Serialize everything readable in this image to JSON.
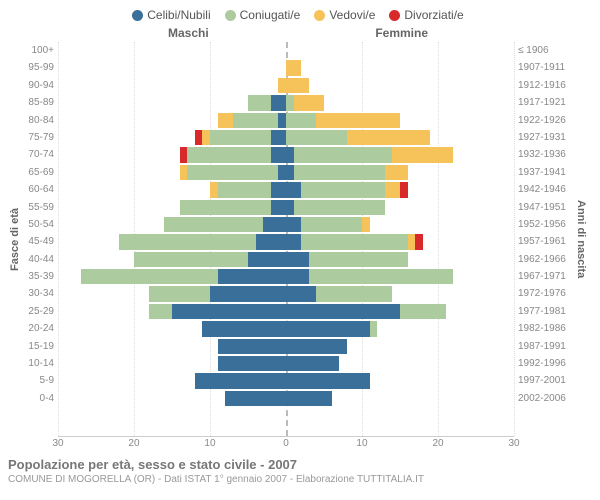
{
  "colors": {
    "celibi": "#3a6f9a",
    "coniugati": "#accb9e",
    "vedovi": "#f6c35a",
    "divorziati": "#d82a2a",
    "grid": "#dddddd",
    "center": "#bbbbbb",
    "text_muted": "#888888"
  },
  "legend": [
    {
      "label": "Celibi/Nubili",
      "color_key": "celibi"
    },
    {
      "label": "Coniugati/e",
      "color_key": "coniugati"
    },
    {
      "label": "Vedovi/e",
      "color_key": "vedovi"
    },
    {
      "label": "Divorziati/e",
      "color_key": "divorziati"
    }
  ],
  "gender_left": "Maschi",
  "gender_right": "Femmine",
  "yaxis_left_title": "Fasce di età",
  "yaxis_right_title": "Anni di nascita",
  "x_max": 30,
  "x_ticks": [
    30,
    20,
    10,
    0,
    10,
    20,
    30
  ],
  "rows": [
    {
      "age": "100+",
      "birth": "≤ 1906",
      "m": {
        "cel": 0,
        "con": 0,
        "ved": 0,
        "div": 0
      },
      "f": {
        "cel": 0,
        "con": 0,
        "ved": 0,
        "div": 0
      }
    },
    {
      "age": "95-99",
      "birth": "1907-1911",
      "m": {
        "cel": 0,
        "con": 0,
        "ved": 0,
        "div": 0
      },
      "f": {
        "cel": 0,
        "con": 0,
        "ved": 2,
        "div": 0
      }
    },
    {
      "age": "90-94",
      "birth": "1912-1916",
      "m": {
        "cel": 0,
        "con": 0,
        "ved": 1,
        "div": 0
      },
      "f": {
        "cel": 0,
        "con": 0,
        "ved": 3,
        "div": 0
      }
    },
    {
      "age": "85-89",
      "birth": "1917-1921",
      "m": {
        "cel": 2,
        "con": 3,
        "ved": 0,
        "div": 0
      },
      "f": {
        "cel": 0,
        "con": 1,
        "ved": 4,
        "div": 0
      }
    },
    {
      "age": "80-84",
      "birth": "1922-1926",
      "m": {
        "cel": 1,
        "con": 6,
        "ved": 2,
        "div": 0
      },
      "f": {
        "cel": 0,
        "con": 4,
        "ved": 11,
        "div": 0
      }
    },
    {
      "age": "75-79",
      "birth": "1927-1931",
      "m": {
        "cel": 2,
        "con": 8,
        "ved": 1,
        "div": 1
      },
      "f": {
        "cel": 0,
        "con": 8,
        "ved": 11,
        "div": 0
      }
    },
    {
      "age": "70-74",
      "birth": "1932-1936",
      "m": {
        "cel": 2,
        "con": 11,
        "ved": 0,
        "div": 1
      },
      "f": {
        "cel": 1,
        "con": 13,
        "ved": 8,
        "div": 0
      }
    },
    {
      "age": "65-69",
      "birth": "1937-1941",
      "m": {
        "cel": 1,
        "con": 12,
        "ved": 1,
        "div": 0
      },
      "f": {
        "cel": 1,
        "con": 12,
        "ved": 3,
        "div": 0
      }
    },
    {
      "age": "60-64",
      "birth": "1942-1946",
      "m": {
        "cel": 2,
        "con": 7,
        "ved": 1,
        "div": 0
      },
      "f": {
        "cel": 2,
        "con": 11,
        "ved": 2,
        "div": 1
      }
    },
    {
      "age": "55-59",
      "birth": "1947-1951",
      "m": {
        "cel": 2,
        "con": 12,
        "ved": 0,
        "div": 0
      },
      "f": {
        "cel": 1,
        "con": 12,
        "ved": 0,
        "div": 0
      }
    },
    {
      "age": "50-54",
      "birth": "1952-1956",
      "m": {
        "cel": 3,
        "con": 13,
        "ved": 0,
        "div": 0
      },
      "f": {
        "cel": 2,
        "con": 8,
        "ved": 1,
        "div": 0
      }
    },
    {
      "age": "45-49",
      "birth": "1957-1961",
      "m": {
        "cel": 4,
        "con": 18,
        "ved": 0,
        "div": 0
      },
      "f": {
        "cel": 2,
        "con": 14,
        "ved": 1,
        "div": 1
      }
    },
    {
      "age": "40-44",
      "birth": "1962-1966",
      "m": {
        "cel": 5,
        "con": 15,
        "ved": 0,
        "div": 0
      },
      "f": {
        "cel": 3,
        "con": 13,
        "ved": 0,
        "div": 0
      }
    },
    {
      "age": "35-39",
      "birth": "1967-1971",
      "m": {
        "cel": 9,
        "con": 18,
        "ved": 0,
        "div": 0
      },
      "f": {
        "cel": 3,
        "con": 19,
        "ved": 0,
        "div": 0
      }
    },
    {
      "age": "30-34",
      "birth": "1972-1976",
      "m": {
        "cel": 10,
        "con": 8,
        "ved": 0,
        "div": 0
      },
      "f": {
        "cel": 4,
        "con": 10,
        "ved": 0,
        "div": 0
      }
    },
    {
      "age": "25-29",
      "birth": "1977-1981",
      "m": {
        "cel": 15,
        "con": 3,
        "ved": 0,
        "div": 0
      },
      "f": {
        "cel": 15,
        "con": 6,
        "ved": 0,
        "div": 0
      }
    },
    {
      "age": "20-24",
      "birth": "1982-1986",
      "m": {
        "cel": 11,
        "con": 0,
        "ved": 0,
        "div": 0
      },
      "f": {
        "cel": 11,
        "con": 1,
        "ved": 0,
        "div": 0
      }
    },
    {
      "age": "15-19",
      "birth": "1987-1991",
      "m": {
        "cel": 9,
        "con": 0,
        "ved": 0,
        "div": 0
      },
      "f": {
        "cel": 8,
        "con": 0,
        "ved": 0,
        "div": 0
      }
    },
    {
      "age": "10-14",
      "birth": "1992-1996",
      "m": {
        "cel": 9,
        "con": 0,
        "ved": 0,
        "div": 0
      },
      "f": {
        "cel": 7,
        "con": 0,
        "ved": 0,
        "div": 0
      }
    },
    {
      "age": "5-9",
      "birth": "1997-2001",
      "m": {
        "cel": 12,
        "con": 0,
        "ved": 0,
        "div": 0
      },
      "f": {
        "cel": 11,
        "con": 0,
        "ved": 0,
        "div": 0
      }
    },
    {
      "age": "0-4",
      "birth": "2002-2006",
      "m": {
        "cel": 8,
        "con": 0,
        "ved": 0,
        "div": 0
      },
      "f": {
        "cel": 6,
        "con": 0,
        "ved": 0,
        "div": 0
      }
    }
  ],
  "footer_title": "Popolazione per età, sesso e stato civile - 2007",
  "footer_sub": "COMUNE DI MOGORELLA (OR) - Dati ISTAT 1° gennaio 2007 - Elaborazione TUTTITALIA.IT"
}
